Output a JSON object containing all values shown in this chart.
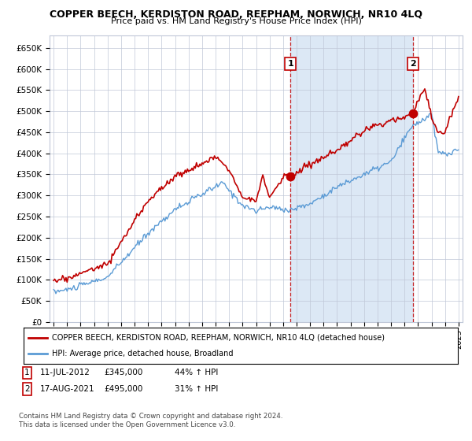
{
  "title": "COPPER BEECH, KERDISTON ROAD, REEPHAM, NORWICH, NR10 4LQ",
  "subtitle": "Price paid vs. HM Land Registry's House Price Index (HPI)",
  "ylim": [
    0,
    680000
  ],
  "yticks": [
    0,
    50000,
    100000,
    150000,
    200000,
    250000,
    300000,
    350000,
    400000,
    450000,
    500000,
    550000,
    600000,
    650000
  ],
  "ytick_labels": [
    "£0",
    "£50K",
    "£100K",
    "£150K",
    "£200K",
    "£250K",
    "£300K",
    "£350K",
    "£400K",
    "£450K",
    "£500K",
    "£550K",
    "£600K",
    "£650K"
  ],
  "hpi_color": "#5b9bd5",
  "price_color": "#c00000",
  "sale1_price": 345000,
  "sale2_price": 495000,
  "sale1_date": "11-JUL-2012",
  "sale2_date": "17-AUG-2021",
  "sale1_x": 2012.54,
  "sale2_x": 2021.63,
  "sale1_pct": "44% ↑ HPI",
  "sale2_pct": "31% ↑ HPI",
  "legend_price_label": "COPPER BEECH, KERDISTON ROAD, REEPHAM, NORWICH, NR10 4LQ (detached house)",
  "legend_hpi_label": "HPI: Average price, detached house, Broadland",
  "footnote": "Contains HM Land Registry data © Crown copyright and database right 2024.\nThis data is licensed under the Open Government Licence v3.0.",
  "bg_color": "#ffffff",
  "grid_color": "#c0c8d8",
  "shade_color": "#dce8f5",
  "x_start_year": 1995,
  "x_end_year": 2025
}
